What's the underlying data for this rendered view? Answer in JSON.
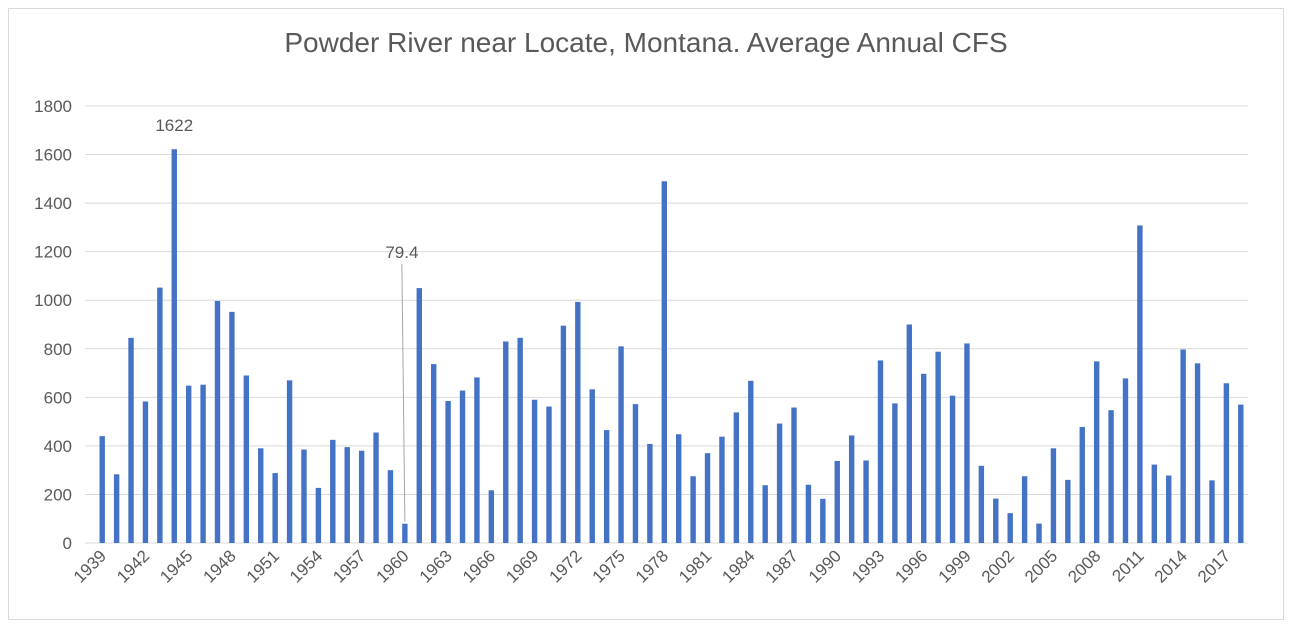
{
  "chart_data": {
    "type": "bar",
    "title": "Powder River near Locate, Montana.  Average Annual CFS",
    "categories": [
      "1939",
      null,
      null,
      "1942",
      null,
      null,
      "1945",
      null,
      null,
      "1948",
      null,
      null,
      "1951",
      null,
      null,
      "1954",
      null,
      null,
      "1957",
      null,
      null,
      "1960",
      null,
      null,
      "1963",
      null,
      null,
      "1966",
      null,
      null,
      "1969",
      null,
      null,
      "1972",
      null,
      null,
      "1975",
      null,
      null,
      "1978",
      null,
      null,
      "1981",
      null,
      null,
      "1984",
      null,
      null,
      "1987",
      null,
      null,
      "1990",
      null,
      null,
      "1993",
      null,
      null,
      "1996",
      null,
      null,
      "1999",
      null,
      null,
      "2002",
      null,
      null,
      "2005",
      null,
      null,
      "2008",
      null,
      null,
      "2011",
      null,
      null,
      "2014",
      null,
      null,
      "2017",
      null
    ],
    "values": [
      440,
      283,
      845,
      583,
      1052,
      1622,
      648,
      652,
      997,
      952,
      690,
      390,
      288,
      670,
      385,
      227,
      425,
      395,
      380,
      455,
      300,
      79.4,
      1050,
      737,
      585,
      628,
      682,
      217,
      830,
      845,
      590,
      562,
      895,
      993,
      633,
      465,
      810,
      572,
      408,
      1490,
      448,
      275,
      370,
      438,
      538,
      668,
      238,
      492,
      558,
      240,
      182,
      338,
      443,
      340,
      752,
      575,
      900,
      697,
      788,
      607,
      822,
      318,
      183,
      123,
      275,
      80,
      390,
      260,
      478,
      748,
      547,
      678,
      1308,
      323,
      278,
      797,
      740,
      258,
      658,
      570
    ],
    "value_labels": [
      null,
      null,
      null,
      null,
      null,
      "1622",
      null,
      null,
      null,
      null,
      null,
      null,
      null,
      null,
      null,
      null,
      null,
      null,
      null,
      null,
      null,
      "79.4",
      null,
      null,
      null,
      null,
      null,
      null,
      null,
      null,
      null,
      null,
      null,
      null,
      null,
      null,
      null,
      null,
      null,
      null,
      null,
      null,
      null,
      null,
      null,
      null,
      null,
      null,
      null,
      null,
      null,
      null,
      null,
      null,
      null,
      null,
      null,
      null,
      null,
      null,
      null,
      null,
      null,
      null,
      null,
      null,
      null,
      null,
      null,
      null,
      null,
      null,
      null,
      null,
      null,
      null,
      null,
      null,
      null,
      null
    ],
    "color": "#4472c4",
    "ylim": [
      0,
      1800
    ],
    "yticks": [
      0,
      200,
      400,
      600,
      800,
      1000,
      1200,
      1400,
      1600,
      1800
    ],
    "grid": true
  }
}
